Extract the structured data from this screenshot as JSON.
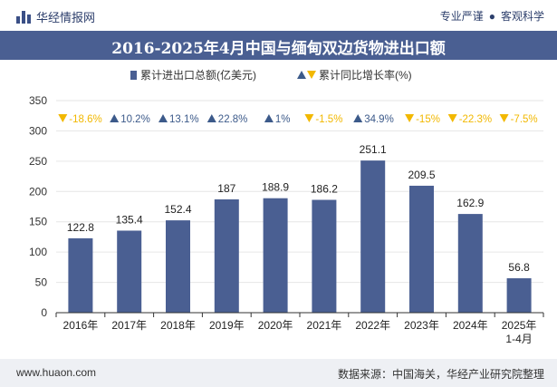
{
  "header": {
    "brand": "华经情报网",
    "slogan_left": "专业严谨",
    "slogan_sep": "●",
    "slogan_right": "客观科学"
  },
  "footer": {
    "website": "www.huaon.com",
    "source": "数据来源：中国海关，华经产业研究院整理"
  },
  "colors": {
    "bar": "#4a5f92",
    "title_bg": "#4a5f92",
    "up": "#3c5a8a",
    "down": "#f2b800"
  },
  "chart_data": {
    "type": "bar",
    "title": "2016-2025年4月中国与缅甸双边货物进出口额",
    "categories": [
      "2016年",
      "2017年",
      "2018年",
      "2019年",
      "2020年",
      "2021年",
      "2022年",
      "2023年",
      "2024年",
      "2025年\n1-4月"
    ],
    "series": [
      {
        "name": "累计进出口总额(亿美元)",
        "values": [
          122.8,
          135.4,
          152.4,
          187,
          188.9,
          186.2,
          251.1,
          209.5,
          162.9,
          56.8
        ]
      },
      {
        "name": "累计同比增长率(%)",
        "values": [
          -18.6,
          10.2,
          13.1,
          22.8,
          1,
          -1.5,
          34.9,
          -15,
          -22.3,
          -7.5
        ]
      }
    ],
    "value_labels": [
      "122.8",
      "135.4",
      "152.4",
      "187",
      "188.9",
      "186.2",
      "251.1",
      "209.5",
      "162.9",
      "56.8"
    ],
    "growth_labels": [
      "-18.6%",
      "10.2%",
      "13.1%",
      "22.8%",
      "1%",
      "-1.5%",
      "34.9%",
      "-15%",
      "-22.3%",
      "-7.5%"
    ],
    "yticks": [
      "0",
      "50",
      "100",
      "150",
      "200",
      "250",
      "300",
      "350"
    ],
    "ylim": [
      0,
      350
    ],
    "legend_position": "top-left"
  }
}
